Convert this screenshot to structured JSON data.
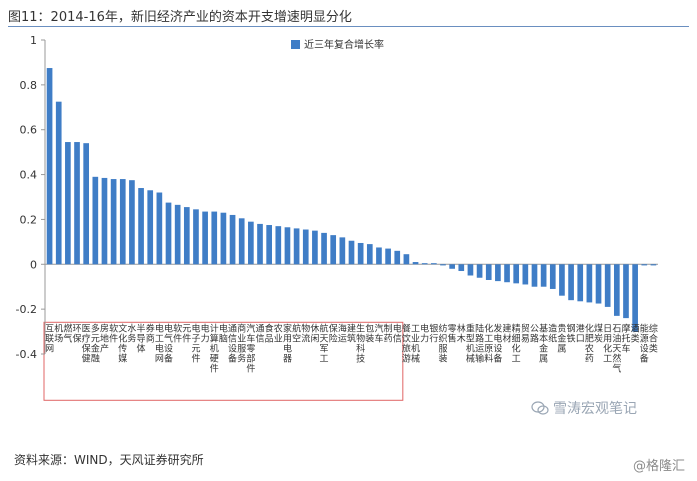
{
  "title": "图11：2014-16年，新旧经济产业的资本开支增速明显分化",
  "source": "资料来源：WIND，天风证券研究所",
  "watermark_1": "雪涛宏观笔记",
  "watermark_2": "@格隆汇",
  "colors": {
    "bar": "#3f7dc6",
    "highlight_box": "#e06464",
    "axis": "#999999"
  },
  "chart_data": {
    "type": "bar",
    "title": "图11：2014-16年，新旧经济产业的资本开支增速明显分化",
    "legend": {
      "position": "top",
      "label": "近三年复合增长率"
    },
    "ylim": [
      -0.4,
      1
    ],
    "yticks": [
      -0.4,
      -0.2,
      0,
      0.2,
      0.4,
      0.6,
      0.8,
      1
    ],
    "ytick_labels": [
      "-0.4",
      "-0.2",
      "0",
      "0.2",
      "0.4",
      "0.6",
      "0.8",
      "1"
    ],
    "grid": false,
    "series": [
      {
        "name": "近三年复合增长率"
      }
    ],
    "categories": [
      "互联网",
      "机场",
      "燃气",
      "环保",
      "医疗保健",
      "多元金融",
      "房地产",
      "软件",
      "文化传媒",
      "水务",
      "半导体",
      "券商",
      "电工电网",
      "电气设备",
      "软件",
      "元件",
      "电子元件",
      "电力",
      "计算机硬件",
      "电脑",
      "通信设备",
      "商业服务",
      "汽车零部件",
      "通信",
      "食品",
      "农业",
      "家用电器",
      "航空",
      "物流",
      "休闲",
      "航天军工",
      "保险",
      "海运",
      "建筑",
      "生物科技",
      "包装",
      "汽车",
      "制药",
      "电信",
      "餐饮旅游",
      "工业机械",
      "电力",
      "银行",
      "纺织服装",
      "零售",
      "林木",
      "重型机械",
      "陆路运输",
      "化工原料",
      "发电设备",
      "建材",
      "精细化工",
      "贸易",
      "公路",
      "基本金属",
      "造纸",
      "贵金属",
      "钢铁",
      "港口",
      "化肥农药",
      "煤炭",
      "日用化工",
      "石油天然气",
      "摩托车",
      "酒类",
      "能源设备",
      "综合类"
    ],
    "category_labels": [
      "互联网",
      "机场",
      "燃气",
      "环保",
      "医疗保健",
      "多元金融",
      "房地产",
      "软件",
      "文化传媒",
      "水务",
      "半导体",
      "券商",
      "电工电网",
      "电气设备",
      "软件",
      "元件",
      "电子元件",
      "电力",
      "计算机硬件",
      "电脑",
      "通信设备",
      "商业服务",
      "汽车零部件",
      "通信",
      "食品",
      "农业",
      "家用电器",
      "航空",
      "物流",
      "休闲",
      "航天军工",
      "保险",
      "海运",
      "建筑",
      "生物科技",
      "包装",
      "汽车",
      "制药",
      "电信",
      "餐饮旅游",
      "工业机械",
      "电力",
      "银行",
      "纺织服装",
      "零售",
      "林木",
      "重型机械",
      "陆路运输",
      "化工原料",
      "发电设备",
      "建材",
      "精细化工",
      "贸易",
      "公路",
      "基本金属",
      "造纸",
      "贵金属",
      "钢铁",
      "港口",
      "化肥农药",
      "煤炭",
      "日用化工",
      "石油天然气",
      "摩托车",
      "酒类",
      "能源设备",
      "综合类"
    ],
    "values": [
      0.875,
      0.725,
      0.545,
      0.545,
      0.54,
      0.39,
      0.385,
      0.38,
      0.38,
      0.375,
      0.34,
      0.33,
      0.32,
      0.275,
      0.265,
      0.255,
      0.245,
      0.235,
      0.235,
      0.23,
      0.22,
      0.205,
      0.19,
      0.18,
      0.175,
      0.17,
      0.165,
      0.16,
      0.155,
      0.15,
      0.14,
      0.13,
      0.12,
      0.105,
      0.095,
      0.09,
      0.075,
      0.07,
      0.06,
      0.045,
      0.01,
      0.005,
      0.005,
      -0.005,
      -0.02,
      -0.03,
      -0.05,
      -0.06,
      -0.07,
      -0.075,
      -0.08,
      -0.085,
      -0.09,
      -0.1,
      -0.1,
      -0.11,
      -0.14,
      -0.16,
      -0.165,
      -0.17,
      -0.175,
      -0.19,
      -0.23,
      -0.24,
      -0.3,
      -0.005,
      -0.005
    ],
    "highlight_range": [
      0,
      38
    ]
  }
}
